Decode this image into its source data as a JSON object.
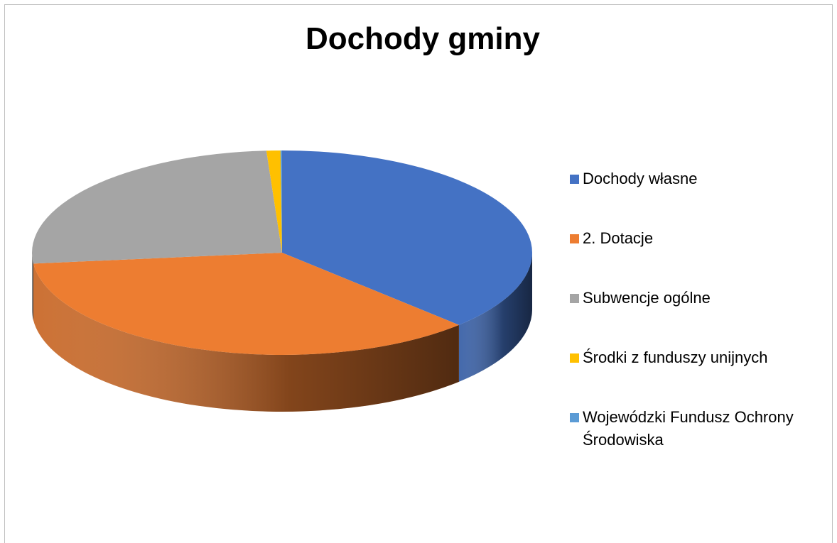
{
  "chart_data": {
    "type": "pie",
    "title": "Dochody gminy",
    "legend_position": "right",
    "categories": [
      "Dochody własne",
      "2. Dotacje",
      "Subwencje ogólne",
      "Środki z funduszy unijnych",
      "Wojewódzki Fundusz Ochrony Środowiska"
    ],
    "values": [
      37.5,
      35.8,
      25.7,
      0.9,
      0.1
    ],
    "colors": [
      "#4472c4",
      "#ed7d31",
      "#a5a5a5",
      "#ffc000",
      "#5b9bd5"
    ]
  }
}
